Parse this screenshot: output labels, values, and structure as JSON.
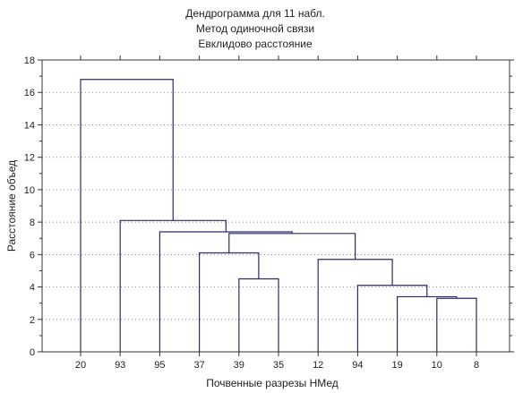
{
  "chart_data": {
    "type": "dendrogram",
    "title": "Дендрограмма для 11 набл.",
    "subtitle_lines": [
      "Метод одиночной связи",
      "Евклидово расстояние"
    ],
    "xlabel": "Почвенные разрезы НМед",
    "ylabel": "Расстояние объед",
    "ylim": [
      0,
      18
    ],
    "yticks": [
      0,
      2,
      4,
      6,
      8,
      10,
      12,
      14,
      16,
      18
    ],
    "grid": true,
    "leaves": [
      "20",
      "93",
      "95",
      "37",
      "39",
      "35",
      "12",
      "94",
      "19",
      "10",
      "8"
    ],
    "merges": [
      {
        "a": "leaf:10",
        "b": "leaf:8",
        "height": 3.3
      },
      {
        "a": "leaf:19",
        "b": "node:0",
        "height": 3.4
      },
      {
        "a": "leaf:94",
        "b": "node:1",
        "height": 4.1
      },
      {
        "a": "leaf:39",
        "b": "leaf:35",
        "height": 4.5
      },
      {
        "a": "leaf:12",
        "b": "node:2",
        "height": 5.7
      },
      {
        "a": "leaf:37",
        "b": "node:3",
        "height": 6.1
      },
      {
        "a": "node:5",
        "b": "node:4",
        "height": 7.3
      },
      {
        "a": "leaf:95",
        "b": "node:6",
        "height": 7.4
      },
      {
        "a": "leaf:93",
        "b": "node:7",
        "height": 8.1
      },
      {
        "a": "leaf:20",
        "b": "node:8",
        "height": 16.8
      }
    ],
    "colors": {
      "lines": "#2b2b6a",
      "grid": "#8a8a8a",
      "axis": "#333333"
    }
  }
}
